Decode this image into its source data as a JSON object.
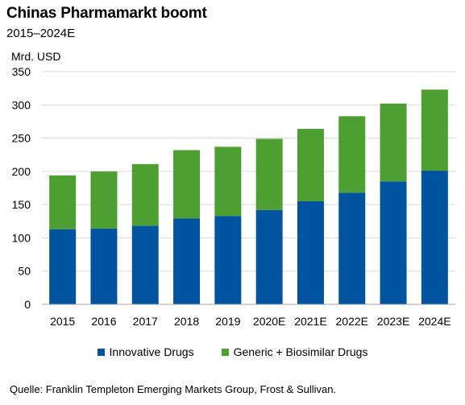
{
  "chart_data": {
    "type": "bar",
    "stacked": true,
    "title": "Chinas Pharmamarkt boomt",
    "subtitle": "2015–2024E",
    "ylabel": "Mrd. USD",
    "ylim": [
      0,
      350
    ],
    "yticks": [
      0,
      50,
      100,
      150,
      200,
      250,
      300,
      350
    ],
    "grid": true,
    "legend_position": "bottom",
    "categories": [
      "2015",
      "2016",
      "2017",
      "2018",
      "2019",
      "2020E",
      "2021E",
      "2022E",
      "2023E",
      "2024E"
    ],
    "series": [
      {
        "name": "Innovative Drugs",
        "color": "#00549F",
        "values": [
          113,
          114,
          118,
          129,
          133,
          142,
          155,
          168,
          185,
          201
        ]
      },
      {
        "name": "Generic + Biosimilar Drugs",
        "color": "#4E9F32",
        "values": [
          81,
          86,
          93,
          103,
          104,
          107,
          109,
          115,
          117,
          122
        ]
      }
    ],
    "source": "Quelle: Franklin Templeton Emerging Markets Group, Frost & Sullivan."
  }
}
